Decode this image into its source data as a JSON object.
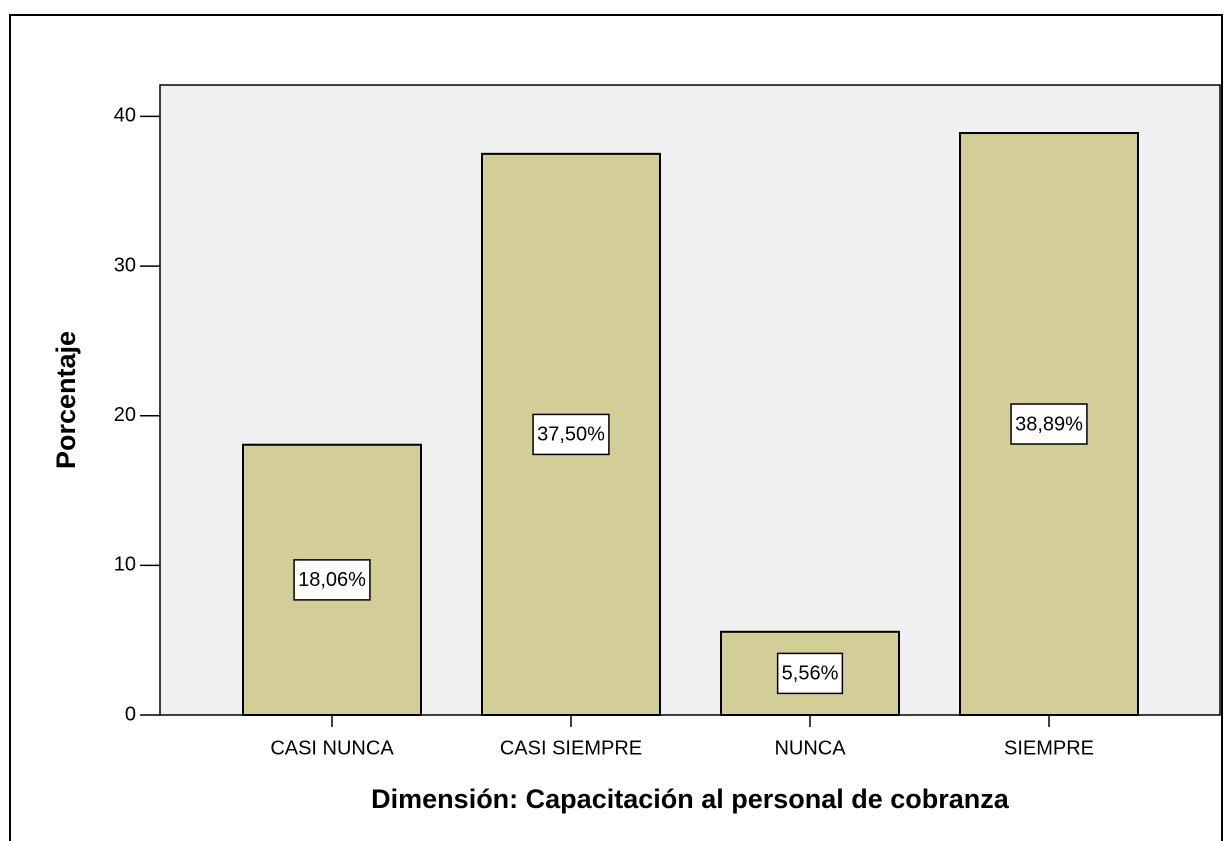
{
  "chart_data": {
    "type": "bar",
    "xlabel": "Dimensión: Capacitación al personal de cobranza",
    "ylabel": "Porcentaje",
    "categories": [
      "CASI NUNCA",
      "CASI SIEMPRE",
      "NUNCA",
      "SIEMPRE"
    ],
    "values": [
      18.06,
      37.5,
      5.56,
      38.89
    ],
    "value_labels": [
      "18,06%",
      "37,50%",
      "5,56%",
      "38,89%"
    ],
    "color": "#d3ce97",
    "ylim": [
      0,
      42.1
    ],
    "yticks": [
      0,
      10,
      20,
      30,
      40
    ],
    "grid": false
  }
}
